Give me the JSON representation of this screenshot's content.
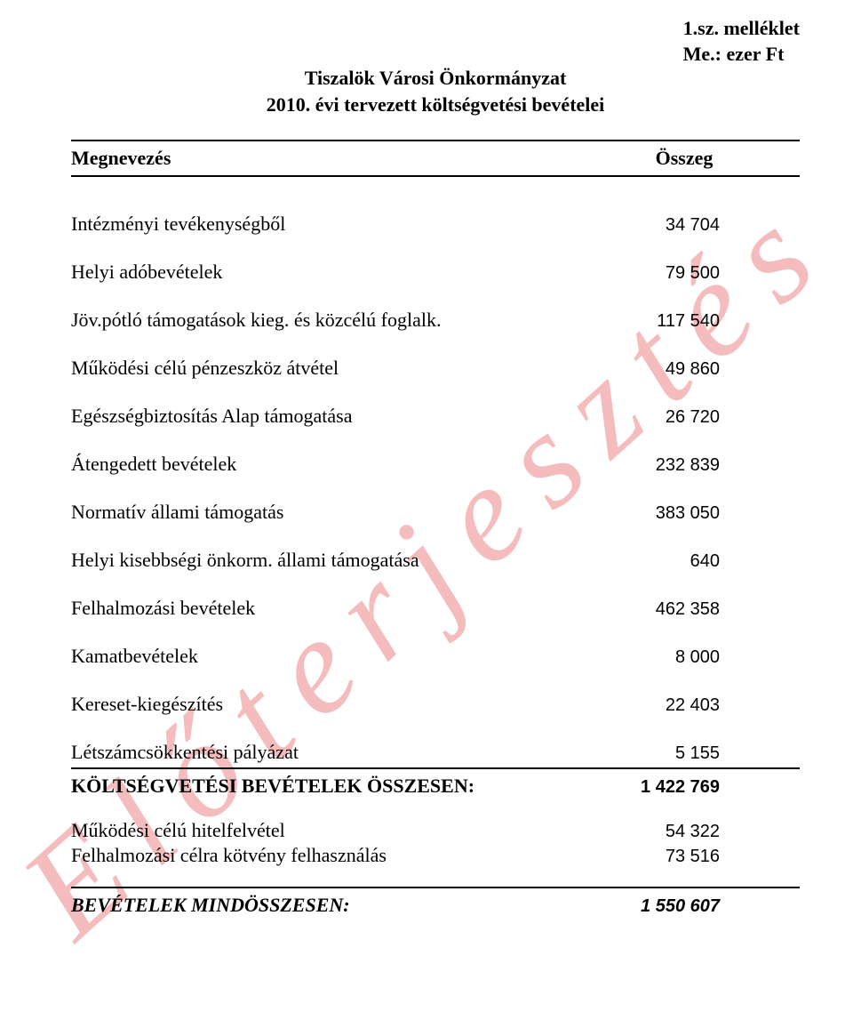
{
  "watermark": {
    "text": "Előterjesztés",
    "color": "#f4bcbc"
  },
  "header": {
    "annex": "1.sz. melléklet",
    "unit": "Me.: ezer Ft"
  },
  "title": {
    "line1": "Tiszalök Városi Önkormányzat",
    "line2": "2010. évi tervezett költségvetési bevételei"
  },
  "tableHeader": {
    "nameCol": "Megnevezés",
    "valueCol": "Összeg"
  },
  "rows": [
    {
      "label": "Intézményi tevékenységből",
      "value": "34 704",
      "bold": false
    },
    {
      "label": "Helyi adóbevételek",
      "value": "79 500",
      "bold": false
    },
    {
      "label": "Jöv.pótló támogatások kieg. és közcélú foglalk.",
      "value": "117 540",
      "bold": false
    },
    {
      "label": "Működési célú pénzeszköz átvétel",
      "value": "49 860",
      "bold": false
    },
    {
      "label": "Egészségbiztosítás Alap támogatása",
      "value": "26 720",
      "bold": false
    },
    {
      "label": "Átengedett bevételek",
      "value": "232 839",
      "bold": false
    },
    {
      "label": "Normatív állami támogatás",
      "value": "383 050",
      "bold": false
    },
    {
      "label": "Helyi kisebbségi önkorm. állami támogatása",
      "value": "640",
      "bold": false
    },
    {
      "label": "Felhalmozási bevételek",
      "value": "462 358",
      "bold": false
    },
    {
      "label": "Kamatbevételek",
      "value": "8 000",
      "bold": false
    },
    {
      "label": "Kereset-kiegészítés",
      "value": "22 403",
      "bold": false
    },
    {
      "label": "Létszámcsökkentési pályázat",
      "value": "5 155",
      "bold": false
    },
    {
      "label": "KÖLTSÉGVETÉSI BEVÉTELEK ÖSSZESEN:",
      "value": "1 422 769",
      "bold": true
    }
  ],
  "belowRows": [
    {
      "label": "Működési célú hitelfelvétel",
      "value": "54 322"
    },
    {
      "label": "Felhalmozási célra kötvény felhasználás",
      "value": "73 516"
    }
  ],
  "finalRow": {
    "label": "BEVÉTELEK MINDÖSSZESEN:",
    "value": "1 550 607"
  },
  "style": {
    "serifFont": "Times New Roman",
    "sansFont": "Arial",
    "textColor": "#000000",
    "background": "#ffffff",
    "pageWidth": 960,
    "pageHeight": 1156,
    "bodyFontSize": 22,
    "valueFontSize": 20,
    "watermarkFontSize": 155,
    "watermarkLetterSpacing": 28,
    "watermarkRotationDeg": -42
  }
}
